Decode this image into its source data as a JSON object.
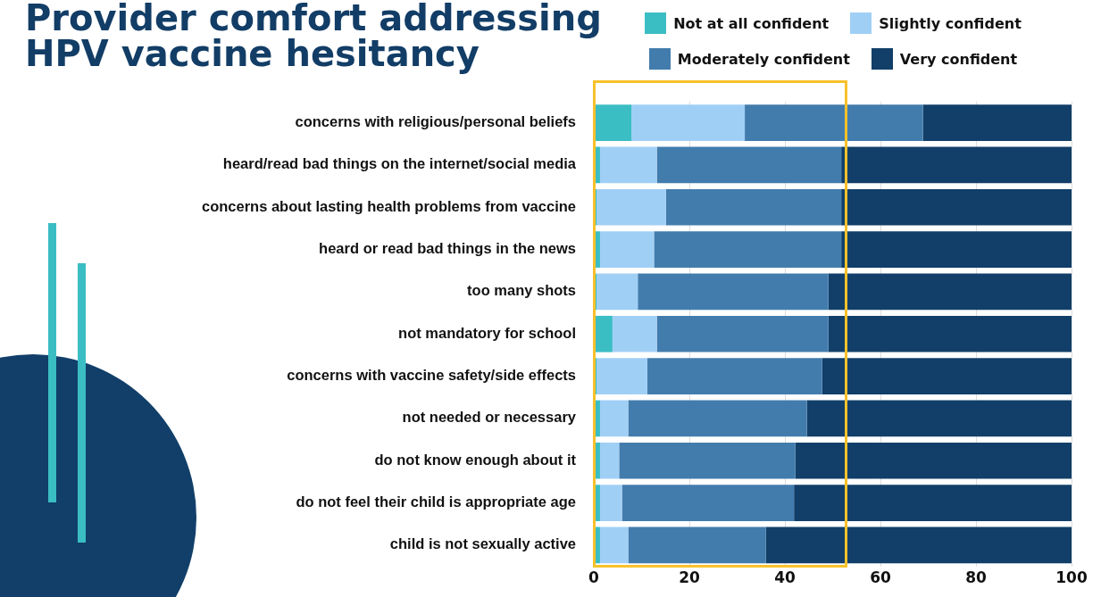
{
  "chart_data": {
    "type": "bar",
    "title": "Provider comfort addressing HPV vaccine hesitancy",
    "orientation": "horizontal",
    "stacked": true,
    "categories": [
      "concerns with religious/personal beliefs",
      "heard/read bad things on the internet/social media",
      "concerns about lasting health problems from vaccine",
      "heard or read bad things in the news",
      "too many shots",
      "not mandatory for school",
      "concerns with vaccine safety/side effects",
      "not needed or necessary",
      "do not know enough about it",
      "do not feel their child is appropriate age",
      "child is not sexually active"
    ],
    "series": [
      {
        "name": "Not at all confident",
        "color": "#3bbdc4",
        "values": [
          7.9,
          1.3,
          0.6,
          1.3,
          0.6,
          3.9,
          0.6,
          1.3,
          1.3,
          1.3,
          1.3
        ]
      },
      {
        "name": "Slightly confident",
        "color": "#a0cff6",
        "values": [
          23.7,
          11.9,
          14.5,
          11.3,
          8.6,
          9.3,
          10.6,
          5.9,
          4.0,
          4.6,
          5.9
        ]
      },
      {
        "name": "Moderately confident",
        "color": "#427cad",
        "values": [
          37.3,
          38.6,
          36.7,
          39.2,
          39.9,
          35.9,
          36.6,
          37.4,
          36.9,
          36.0,
          28.8
        ]
      },
      {
        "name": "Very confident",
        "color": "#113f69",
        "values": [
          31.1,
          48.2,
          48.2,
          48.2,
          50.9,
          50.9,
          52.2,
          55.4,
          57.8,
          58.1,
          64.0
        ]
      }
    ],
    "xlim": [
      0,
      100
    ],
    "xticks": [
      0,
      20,
      40,
      60,
      80,
      100
    ],
    "grid": "x",
    "legend": "top right"
  }
}
